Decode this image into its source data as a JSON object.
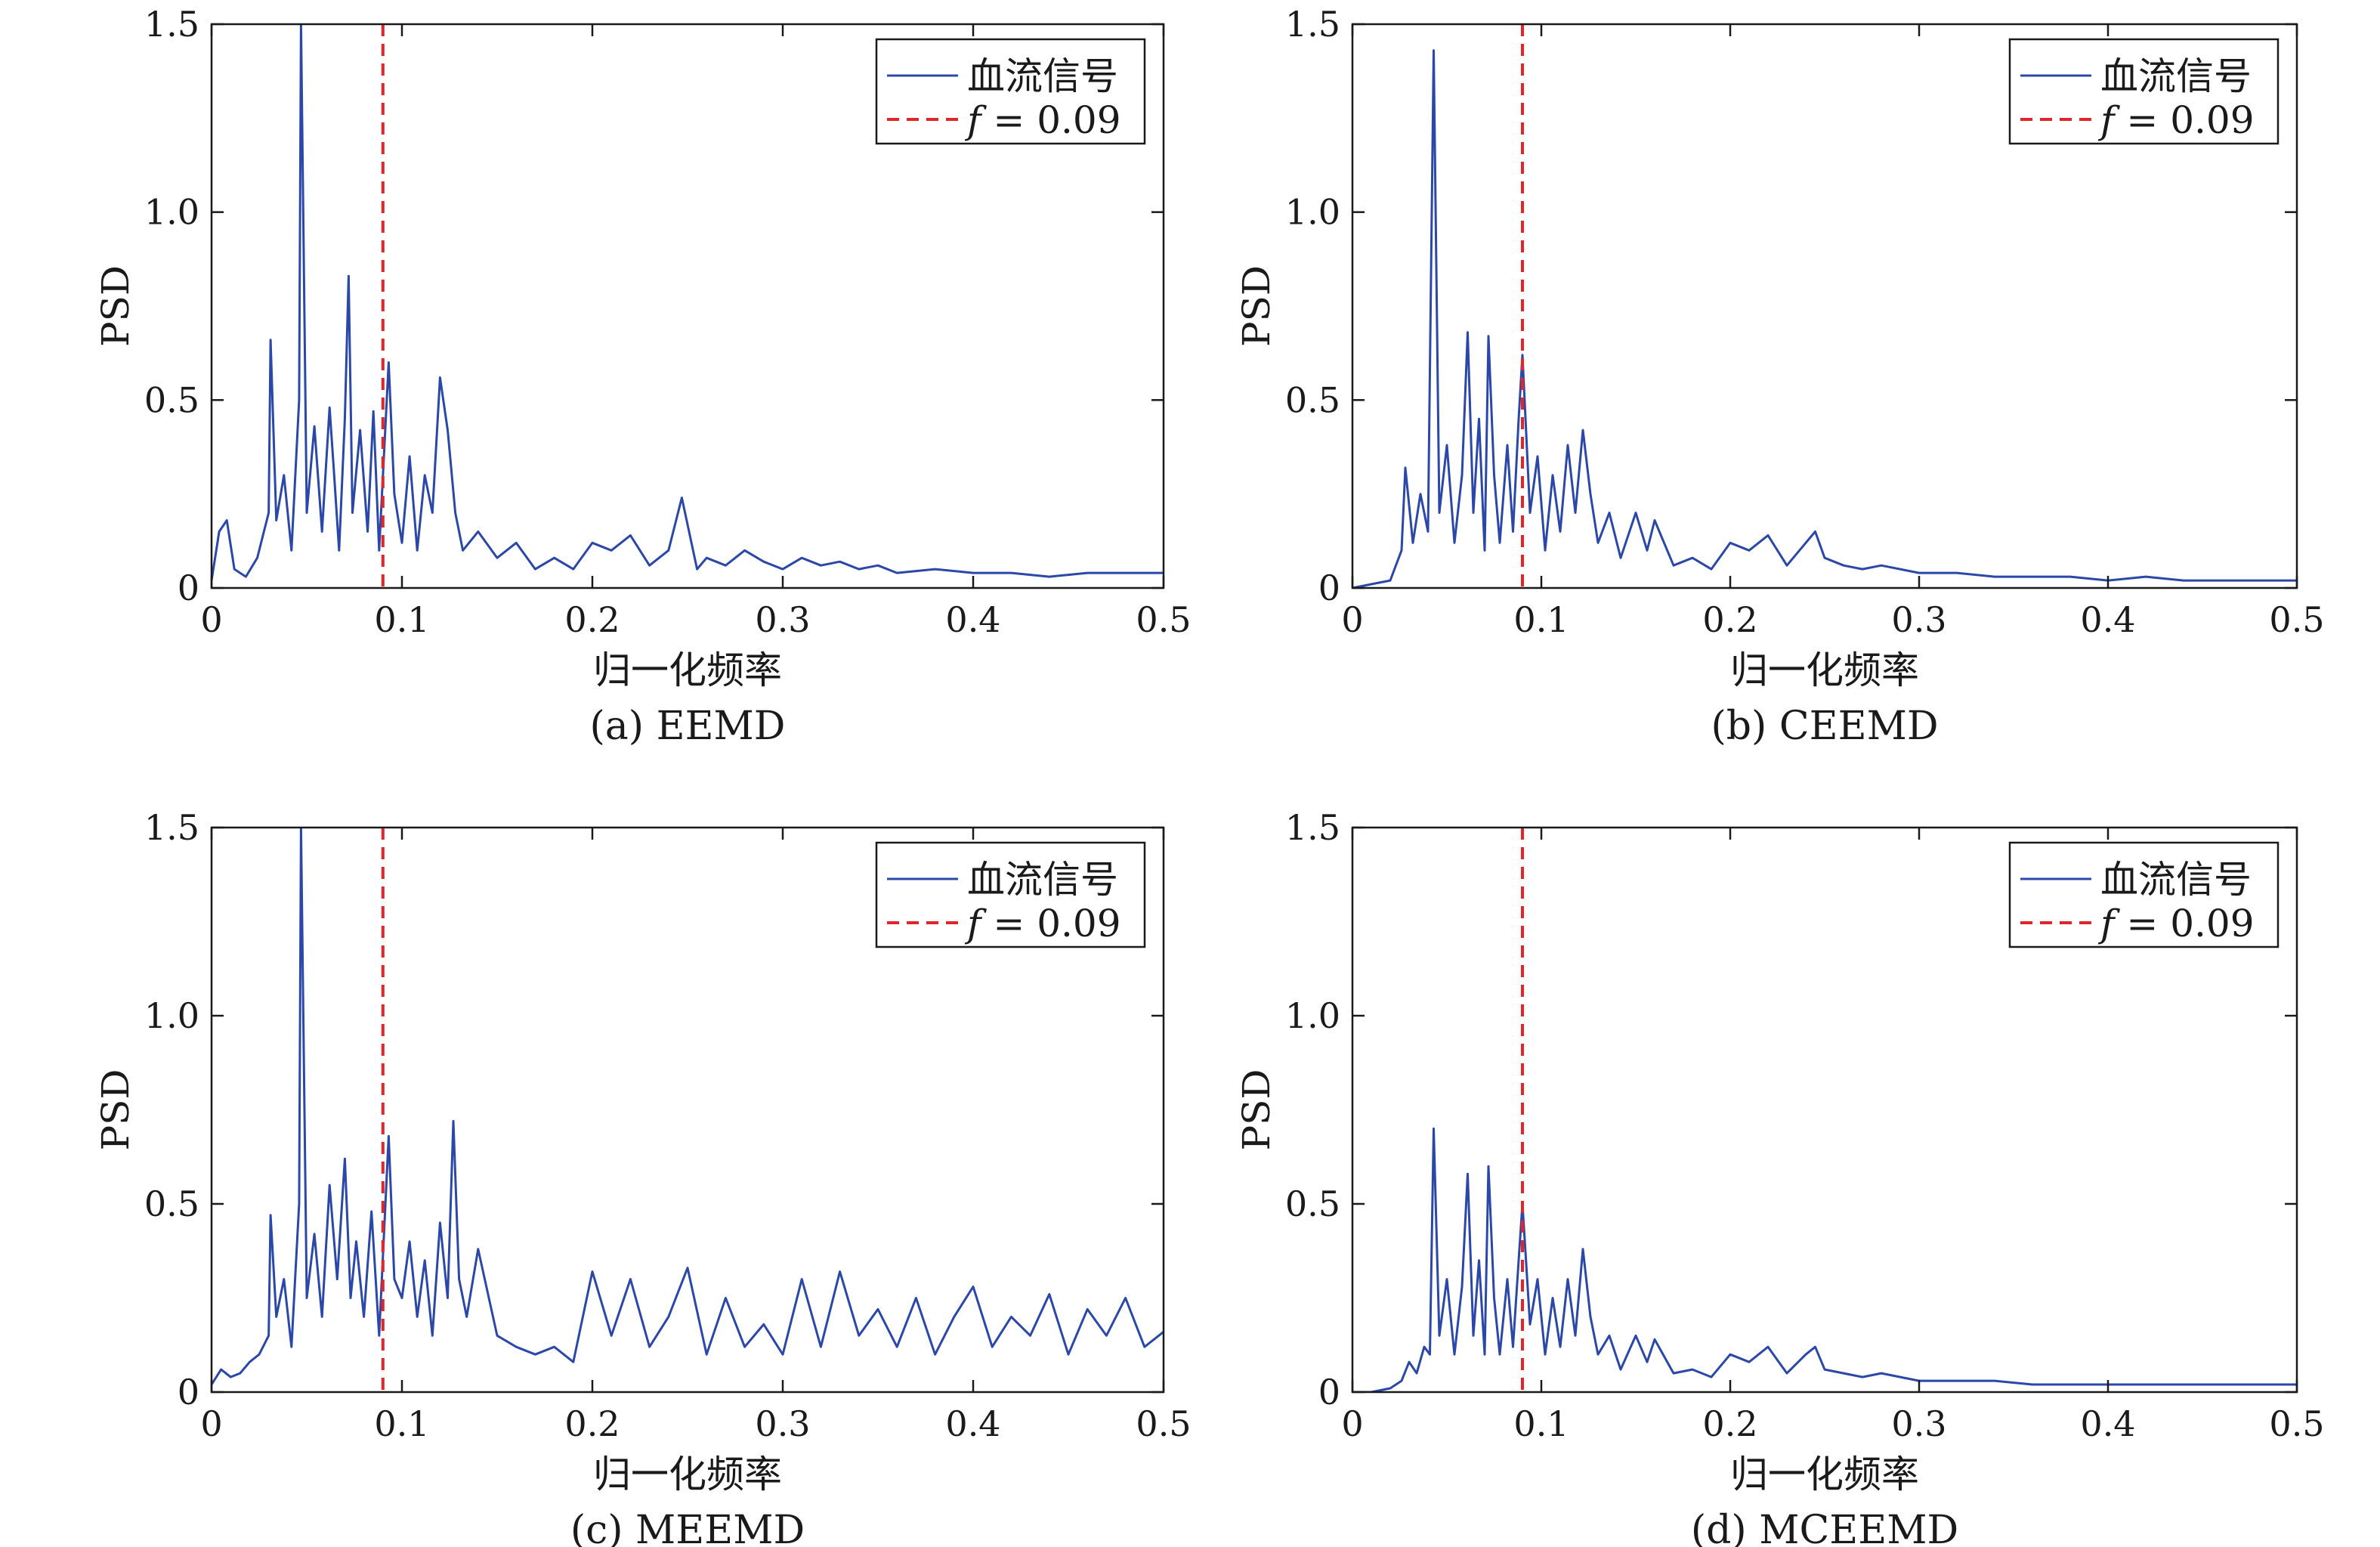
{
  "figure": {
    "x_tick_labels": [
      "0",
      "0.1",
      "0.2",
      "0.3",
      "0.4",
      "0.5"
    ],
    "y_tick_labels": [
      "0",
      "0.5",
      "1.0",
      "1.5"
    ]
  },
  "colors": {
    "signal": "#2b48a8",
    "threshold": "#e0262a",
    "axes": "#1a1a1a"
  },
  "chart_data": [
    {
      "type": "line",
      "caption": "(a) EEMD",
      "xlabel": "归一化频率",
      "ylabel": "PSD",
      "xlim": [
        0,
        0.5
      ],
      "ylim": [
        0,
        1.5
      ],
      "legend": {
        "position": "top-right",
        "entries": [
          "血流信号",
          "f = 0.09"
        ]
      },
      "threshold": {
        "x": 0.09,
        "label": "f = 0.09"
      },
      "series": [
        {
          "name": "血流信号",
          "x": [
            0,
            0.004,
            0.008,
            0.012,
            0.018,
            0.024,
            0.03,
            0.031,
            0.034,
            0.038,
            0.042,
            0.046,
            0.047,
            0.05,
            0.054,
            0.058,
            0.062,
            0.064,
            0.067,
            0.07,
            0.072,
            0.074,
            0.078,
            0.082,
            0.085,
            0.088,
            0.093,
            0.096,
            0.1,
            0.104,
            0.108,
            0.112,
            0.116,
            0.12,
            0.124,
            0.128,
            0.132,
            0.14,
            0.15,
            0.16,
            0.17,
            0.18,
            0.19,
            0.2,
            0.21,
            0.22,
            0.23,
            0.24,
            0.247,
            0.255,
            0.26,
            0.27,
            0.28,
            0.29,
            0.3,
            0.31,
            0.32,
            0.33,
            0.34,
            0.35,
            0.36,
            0.38,
            0.4,
            0.42,
            0.44,
            0.46,
            0.48,
            0.5
          ],
          "y": [
            0.02,
            0.15,
            0.18,
            0.05,
            0.03,
            0.08,
            0.2,
            0.66,
            0.18,
            0.3,
            0.1,
            0.5,
            1.5,
            0.2,
            0.43,
            0.15,
            0.48,
            0.33,
            0.1,
            0.45,
            0.83,
            0.2,
            0.42,
            0.15,
            0.47,
            0.1,
            0.6,
            0.25,
            0.12,
            0.35,
            0.1,
            0.3,
            0.2,
            0.56,
            0.42,
            0.2,
            0.1,
            0.15,
            0.08,
            0.12,
            0.05,
            0.08,
            0.05,
            0.12,
            0.1,
            0.14,
            0.06,
            0.1,
            0.24,
            0.05,
            0.08,
            0.06,
            0.1,
            0.07,
            0.05,
            0.08,
            0.06,
            0.07,
            0.05,
            0.06,
            0.04,
            0.05,
            0.04,
            0.04,
            0.03,
            0.04,
            0.04,
            0.04
          ]
        }
      ]
    },
    {
      "type": "line",
      "caption": "(b) CEEMD",
      "xlabel": "归一化频率",
      "ylabel": "PSD",
      "xlim": [
        0,
        0.5
      ],
      "ylim": [
        0,
        1.5
      ],
      "legend": {
        "position": "top-right",
        "entries": [
          "血流信号",
          "f = 0.09"
        ]
      },
      "threshold": {
        "x": 0.09,
        "label": "f = 0.09"
      },
      "series": [
        {
          "name": "血流信号",
          "x": [
            0,
            0.01,
            0.02,
            0.026,
            0.028,
            0.032,
            0.036,
            0.04,
            0.043,
            0.046,
            0.05,
            0.054,
            0.058,
            0.061,
            0.064,
            0.067,
            0.07,
            0.072,
            0.075,
            0.078,
            0.082,
            0.085,
            0.088,
            0.09,
            0.094,
            0.098,
            0.102,
            0.106,
            0.11,
            0.114,
            0.118,
            0.122,
            0.126,
            0.13,
            0.136,
            0.142,
            0.15,
            0.156,
            0.16,
            0.17,
            0.18,
            0.19,
            0.2,
            0.21,
            0.22,
            0.23,
            0.24,
            0.245,
            0.25,
            0.26,
            0.27,
            0.28,
            0.3,
            0.32,
            0.34,
            0.36,
            0.38,
            0.4,
            0.42,
            0.44,
            0.46,
            0.48,
            0.5
          ],
          "y": [
            0.0,
            0.01,
            0.02,
            0.1,
            0.32,
            0.12,
            0.25,
            0.15,
            1.43,
            0.2,
            0.38,
            0.12,
            0.3,
            0.68,
            0.2,
            0.45,
            0.1,
            0.67,
            0.3,
            0.12,
            0.38,
            0.15,
            0.45,
            0.62,
            0.2,
            0.35,
            0.1,
            0.3,
            0.15,
            0.38,
            0.2,
            0.42,
            0.25,
            0.12,
            0.2,
            0.08,
            0.2,
            0.1,
            0.18,
            0.06,
            0.08,
            0.05,
            0.12,
            0.1,
            0.14,
            0.06,
            0.12,
            0.15,
            0.08,
            0.06,
            0.05,
            0.06,
            0.04,
            0.04,
            0.03,
            0.03,
            0.03,
            0.02,
            0.03,
            0.02,
            0.02,
            0.02,
            0.02
          ]
        }
      ]
    },
    {
      "type": "line",
      "caption": "(c) MEEMD",
      "xlabel": "归一化频率",
      "ylabel": "PSD",
      "xlim": [
        0,
        0.5
      ],
      "ylim": [
        0,
        1.5
      ],
      "legend": {
        "position": "top-right",
        "entries": [
          "血流信号",
          "f = 0.09"
        ]
      },
      "threshold": {
        "x": 0.09,
        "label": "f = 0.09"
      },
      "series": [
        {
          "name": "血流信号",
          "x": [
            0,
            0.005,
            0.01,
            0.015,
            0.02,
            0.025,
            0.03,
            0.031,
            0.034,
            0.038,
            0.042,
            0.046,
            0.047,
            0.05,
            0.054,
            0.058,
            0.062,
            0.066,
            0.07,
            0.073,
            0.076,
            0.08,
            0.084,
            0.088,
            0.093,
            0.096,
            0.1,
            0.104,
            0.108,
            0.112,
            0.116,
            0.12,
            0.124,
            0.127,
            0.13,
            0.134,
            0.14,
            0.15,
            0.16,
            0.17,
            0.18,
            0.19,
            0.2,
            0.21,
            0.22,
            0.23,
            0.24,
            0.25,
            0.26,
            0.27,
            0.28,
            0.29,
            0.3,
            0.31,
            0.32,
            0.33,
            0.34,
            0.35,
            0.36,
            0.37,
            0.38,
            0.39,
            0.4,
            0.41,
            0.42,
            0.43,
            0.44,
            0.45,
            0.46,
            0.47,
            0.48,
            0.49,
            0.5
          ],
          "y": [
            0.02,
            0.06,
            0.04,
            0.05,
            0.08,
            0.1,
            0.15,
            0.47,
            0.2,
            0.3,
            0.12,
            0.5,
            1.5,
            0.25,
            0.42,
            0.2,
            0.55,
            0.3,
            0.62,
            0.25,
            0.4,
            0.2,
            0.48,
            0.15,
            0.68,
            0.3,
            0.25,
            0.4,
            0.2,
            0.35,
            0.15,
            0.45,
            0.25,
            0.72,
            0.3,
            0.2,
            0.38,
            0.15,
            0.12,
            0.1,
            0.12,
            0.08,
            0.32,
            0.15,
            0.3,
            0.12,
            0.2,
            0.33,
            0.1,
            0.25,
            0.12,
            0.18,
            0.1,
            0.3,
            0.12,
            0.32,
            0.15,
            0.22,
            0.12,
            0.25,
            0.1,
            0.2,
            0.28,
            0.12,
            0.2,
            0.15,
            0.26,
            0.1,
            0.22,
            0.15,
            0.25,
            0.12,
            0.16
          ]
        }
      ]
    },
    {
      "type": "line",
      "caption": "(d) MCEEMD",
      "xlabel": "归一化频率",
      "ylabel": "PSD",
      "xlim": [
        0,
        0.5
      ],
      "ylim": [
        0,
        1.5
      ],
      "legend": {
        "position": "top-right",
        "entries": [
          "血流信号",
          "f = 0.09"
        ]
      },
      "threshold": {
        "x": 0.09,
        "label": "f = 0.09"
      },
      "series": [
        {
          "name": "血流信号",
          "x": [
            0,
            0.01,
            0.02,
            0.026,
            0.03,
            0.034,
            0.038,
            0.041,
            0.043,
            0.046,
            0.05,
            0.054,
            0.058,
            0.061,
            0.064,
            0.067,
            0.07,
            0.072,
            0.075,
            0.078,
            0.082,
            0.085,
            0.088,
            0.09,
            0.094,
            0.098,
            0.102,
            0.106,
            0.11,
            0.114,
            0.118,
            0.122,
            0.126,
            0.13,
            0.136,
            0.142,
            0.15,
            0.156,
            0.16,
            0.17,
            0.18,
            0.19,
            0.2,
            0.21,
            0.22,
            0.23,
            0.24,
            0.245,
            0.25,
            0.26,
            0.27,
            0.28,
            0.3,
            0.32,
            0.34,
            0.36,
            0.38,
            0.4,
            0.42,
            0.44,
            0.46,
            0.48,
            0.5
          ],
          "y": [
            0.0,
            0.0,
            0.01,
            0.03,
            0.08,
            0.05,
            0.12,
            0.1,
            0.7,
            0.15,
            0.3,
            0.1,
            0.28,
            0.58,
            0.15,
            0.35,
            0.1,
            0.6,
            0.25,
            0.1,
            0.3,
            0.12,
            0.35,
            0.5,
            0.18,
            0.3,
            0.1,
            0.25,
            0.12,
            0.3,
            0.15,
            0.38,
            0.2,
            0.1,
            0.15,
            0.06,
            0.15,
            0.08,
            0.14,
            0.05,
            0.06,
            0.04,
            0.1,
            0.08,
            0.12,
            0.05,
            0.1,
            0.12,
            0.06,
            0.05,
            0.04,
            0.05,
            0.03,
            0.03,
            0.03,
            0.02,
            0.02,
            0.02,
            0.02,
            0.02,
            0.02,
            0.02,
            0.02
          ]
        }
      ]
    }
  ]
}
